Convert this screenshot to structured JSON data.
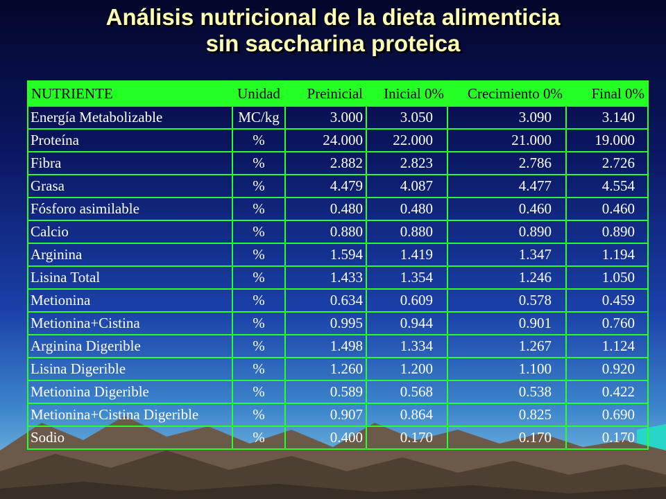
{
  "slide": {
    "title_line1": "Análisis nutricional de la dieta alimenticia",
    "title_line2": "sin saccharina proteica"
  },
  "table": {
    "headers": [
      "NUTRIENTE",
      "Unidad",
      "Preinicial",
      "Inicial 0%",
      "Crecimiento 0%",
      "Final 0%"
    ],
    "rows": [
      [
        "Energía Metabolizable",
        "MC/kg",
        "3.000",
        "3.050",
        "3.090",
        "3.140"
      ],
      [
        "Proteína",
        "%",
        "24.000",
        "22.000",
        "21.000",
        "19.000"
      ],
      [
        "Fibra",
        "%",
        "2.882",
        "2.823",
        "2.786",
        "2.726"
      ],
      [
        "Grasa",
        "%",
        "4.479",
        "4.087",
        "4.477",
        "4.554"
      ],
      [
        "Fósforo asimilable",
        "%",
        "0.480",
        "0.480",
        "0.460",
        "0.460"
      ],
      [
        "Calcio",
        "%",
        "0.880",
        "0.880",
        "0.890",
        "0.890"
      ],
      [
        "Arginina",
        "%",
        "1.594",
        "1.419",
        "1.347",
        "1.194"
      ],
      [
        "Lisina Total",
        "%",
        "1.433",
        "1.354",
        "1.246",
        "1.050"
      ],
      [
        "Metionina",
        "%",
        "0.634",
        "0.609",
        "0.578",
        "0.459"
      ],
      [
        "Metionina+Cistina",
        "%",
        "0.995",
        "0.944",
        "0.901",
        "0.760"
      ],
      [
        "Arginina Digerible",
        "%",
        "1.498",
        "1.334",
        "1.267",
        "1.124"
      ],
      [
        "Lisina Digerible",
        "%",
        "1.260",
        "1.200",
        "1.100",
        "0.920"
      ],
      [
        "Metionina Digerible",
        "%",
        "0.589",
        "0.568",
        "0.538",
        "0.422"
      ],
      [
        "Metionina+Cistina Digerible",
        "%",
        "0.907",
        "0.864",
        "0.825",
        "0.690"
      ],
      [
        "Sodio",
        "%",
        "0.400",
        "0.170",
        "0.170",
        "0.170"
      ]
    ]
  },
  "colors": {
    "title_text": "#ffffb4",
    "table_header_bg": "#24ff24",
    "table_border": "#29ff29",
    "cell_text": "#ffffff"
  }
}
